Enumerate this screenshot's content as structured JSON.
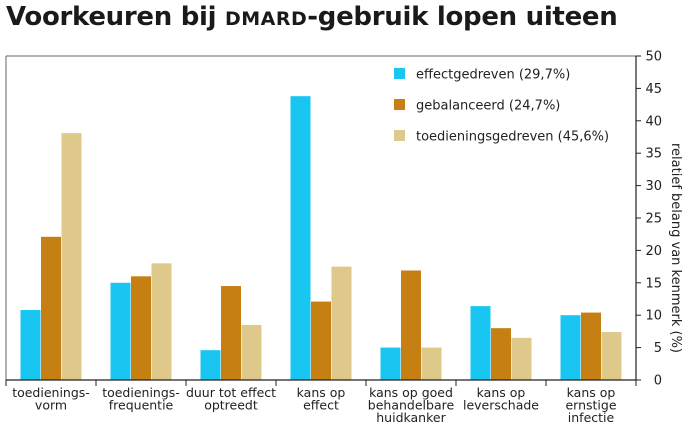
{
  "title": {
    "part1": "Voorkeuren bij ",
    "part2": "DMARD",
    "part3": "-gebruik lopen uiteen"
  },
  "chart_data": {
    "type": "bar",
    "title": "Voorkeuren bij DMARD-gebruik lopen uiteen",
    "ylabel": "relatief belang van kenmerk (%)",
    "ylim": [
      0,
      50
    ],
    "yticks": [
      0,
      5,
      10,
      15,
      20,
      25,
      30,
      35,
      40,
      45,
      50
    ],
    "y_axis_side": "right",
    "legend_position": "top-right",
    "categories": [
      [
        "toedienings-",
        "vorm"
      ],
      [
        "toedienings-",
        "frequentie"
      ],
      [
        "duur tot effect",
        "optreedt"
      ],
      [
        "kans op",
        "effect"
      ],
      [
        "kans op goed",
        "behandelbare",
        "huidkanker"
      ],
      [
        "kans op",
        "leverschade"
      ],
      [
        "kans op",
        "ernstige",
        "infectie"
      ]
    ],
    "series": [
      {
        "name": "effectgedreven (29,7%)",
        "color": "#19c6f2",
        "values": [
          10.8,
          15.0,
          4.6,
          43.8,
          5.0,
          11.4,
          10.0
        ]
      },
      {
        "name": "gebalanceerd (24,7%)",
        "color": "#c57f12",
        "values": [
          22.1,
          16.0,
          14.5,
          12.1,
          16.9,
          8.0,
          10.4
        ]
      },
      {
        "name": "toedieningsgedreven (45,6%)",
        "color": "#dec98a",
        "values": [
          38.1,
          18.0,
          8.5,
          17.5,
          5.0,
          6.5,
          7.4
        ]
      }
    ]
  }
}
